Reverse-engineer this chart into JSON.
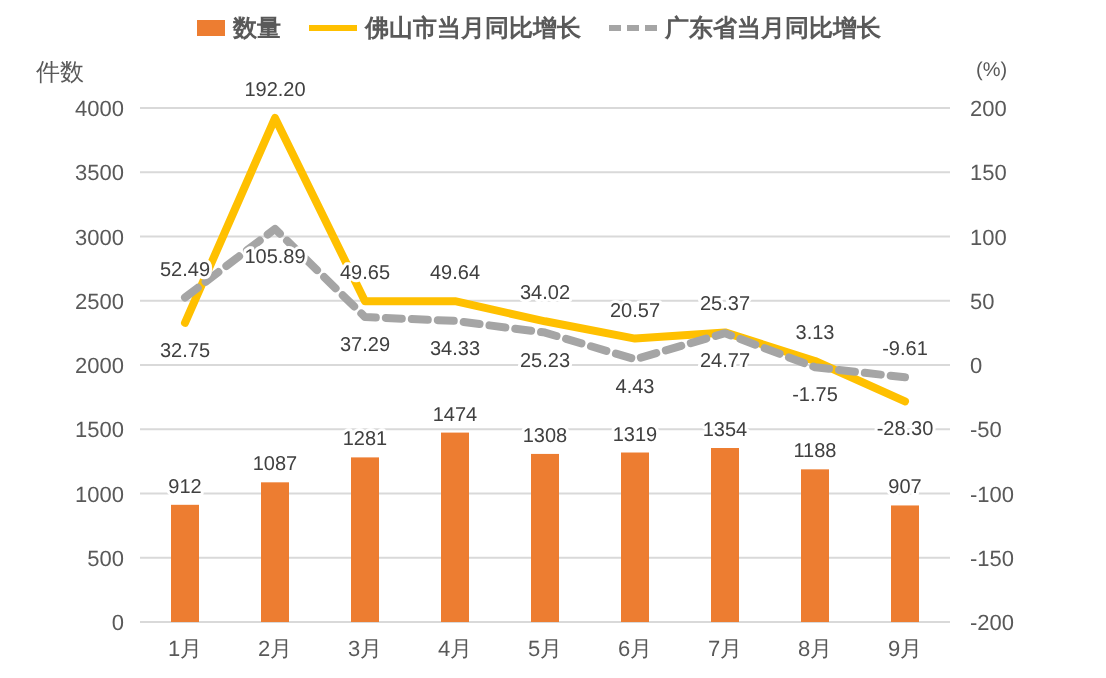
{
  "chart_data": {
    "type": "bar",
    "categories": [
      "1月",
      "2月",
      "3月",
      "4月",
      "5月",
      "6月",
      "7月",
      "8月",
      "9月"
    ],
    "ylabel": "件数",
    "y2label": "(%)",
    "ylim": [
      0,
      4000
    ],
    "yticks": [
      0,
      500,
      1000,
      1500,
      2000,
      2500,
      3000,
      3500,
      4000
    ],
    "y2lim": [
      -200,
      200
    ],
    "y2ticks": [
      -200,
      -150,
      -100,
      -50,
      0,
      50,
      100,
      150,
      200
    ],
    "grid": "y",
    "legend": "top",
    "series": [
      {
        "name": "数量",
        "color": "#ed7d31",
        "values": [
          912,
          1087,
          1281,
          1474,
          1308,
          1319,
          1354,
          1188,
          907
        ],
        "value_labels": [
          "912",
          "1087",
          "1281",
          "1474",
          "1308",
          "1319",
          "1354",
          "1188",
          "907"
        ]
      },
      {
        "name": "佛山市当月同比增长",
        "type": "line",
        "axis": "y2",
        "color": "#ffc000",
        "line_style": "solid",
        "values": [
          32.75,
          192.2,
          49.65,
          49.64,
          34.02,
          20.57,
          25.37,
          3.13,
          -28.3
        ],
        "value_labels": [
          "32.75",
          "192.20",
          "49.65",
          "49.64",
          "34.02",
          "20.57",
          "25.37",
          "3.13",
          "-28.30"
        ]
      },
      {
        "name": "广东省当月同比增长",
        "type": "line",
        "axis": "y2",
        "color": "#a5a5a5",
        "line_style": "dashed",
        "values": [
          52.49,
          105.89,
          37.29,
          34.33,
          25.23,
          4.43,
          24.77,
          -1.75,
          -9.61
        ],
        "value_labels": [
          "52.49",
          "105.89",
          "37.29",
          "34.33",
          "25.23",
          "4.43",
          "24.77",
          "-1.75",
          "-9.61"
        ]
      }
    ]
  }
}
